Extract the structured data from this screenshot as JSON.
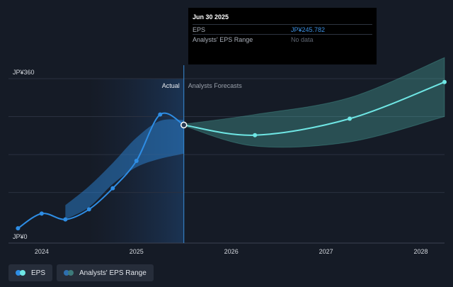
{
  "chart_data": {
    "type": "line",
    "currency": "JP¥",
    "y_ticks": [
      {
        "value": 0,
        "label": "JP¥0"
      },
      {
        "value": 360,
        "label": "JP¥360"
      }
    ],
    "x_ticks": [
      "2024",
      "2025",
      "2026",
      "2027",
      "2028"
    ],
    "xlim": [
      2023.65,
      2028.25
    ],
    "ylim": [
      -30,
      360
    ],
    "divider_x": 2025.5,
    "actual_label": "Actual",
    "forecast_label": "Analysts Forecasts",
    "series": [
      {
        "name": "EPS",
        "color": "#2e8de4",
        "points": [
          [
            2023.75,
            5
          ],
          [
            2024.0,
            40
          ],
          [
            2024.25,
            26
          ],
          [
            2024.5,
            50
          ],
          [
            2024.75,
            100
          ],
          [
            2025.0,
            165
          ],
          [
            2025.25,
            275
          ],
          [
            2025.5,
            250
          ]
        ]
      },
      {
        "name": "EPS",
        "color": "#6fe6e4",
        "points": [
          [
            2025.5,
            250
          ],
          [
            2026.25,
            226
          ],
          [
            2027.25,
            265
          ],
          [
            2028.25,
            352
          ]
        ]
      }
    ],
    "ranges": [
      {
        "name": "Analysts' EPS Range",
        "color": "#2e8de4",
        "upper": [
          [
            2024.25,
            60
          ],
          [
            2024.5,
            105
          ],
          [
            2024.75,
            160
          ],
          [
            2025.0,
            220
          ],
          [
            2025.25,
            260
          ],
          [
            2025.5,
            262
          ]
        ],
        "lower": [
          [
            2024.25,
            26
          ],
          [
            2024.5,
            55
          ],
          [
            2024.75,
            110
          ],
          [
            2025.0,
            150
          ],
          [
            2025.25,
            170
          ],
          [
            2025.5,
            182
          ]
        ]
      },
      {
        "name": "Analysts' EPS Range",
        "color": "#5fd6c8",
        "upper": [
          [
            2025.5,
            252
          ],
          [
            2026.25,
            275
          ],
          [
            2027.25,
            315
          ],
          [
            2028.25,
            410
          ]
        ],
        "lower": [
          [
            2025.5,
            248
          ],
          [
            2026.25,
            200
          ],
          [
            2027.25,
            210
          ],
          [
            2028.25,
            270
          ]
        ]
      }
    ]
  },
  "tooltip": {
    "date": "Jun 30 2025",
    "rows": [
      {
        "label": "EPS",
        "value": "JP¥245.782"
      },
      {
        "label": "Analysts' EPS Range",
        "value": "No data"
      }
    ]
  },
  "legend": [
    {
      "label": "EPS",
      "color_a": "#2e8de4",
      "color_b": "#6fe6e4"
    },
    {
      "label": "Analysts' EPS Range",
      "color_a": "#2e8de4",
      "color_b": "#3d7a7a"
    }
  ]
}
